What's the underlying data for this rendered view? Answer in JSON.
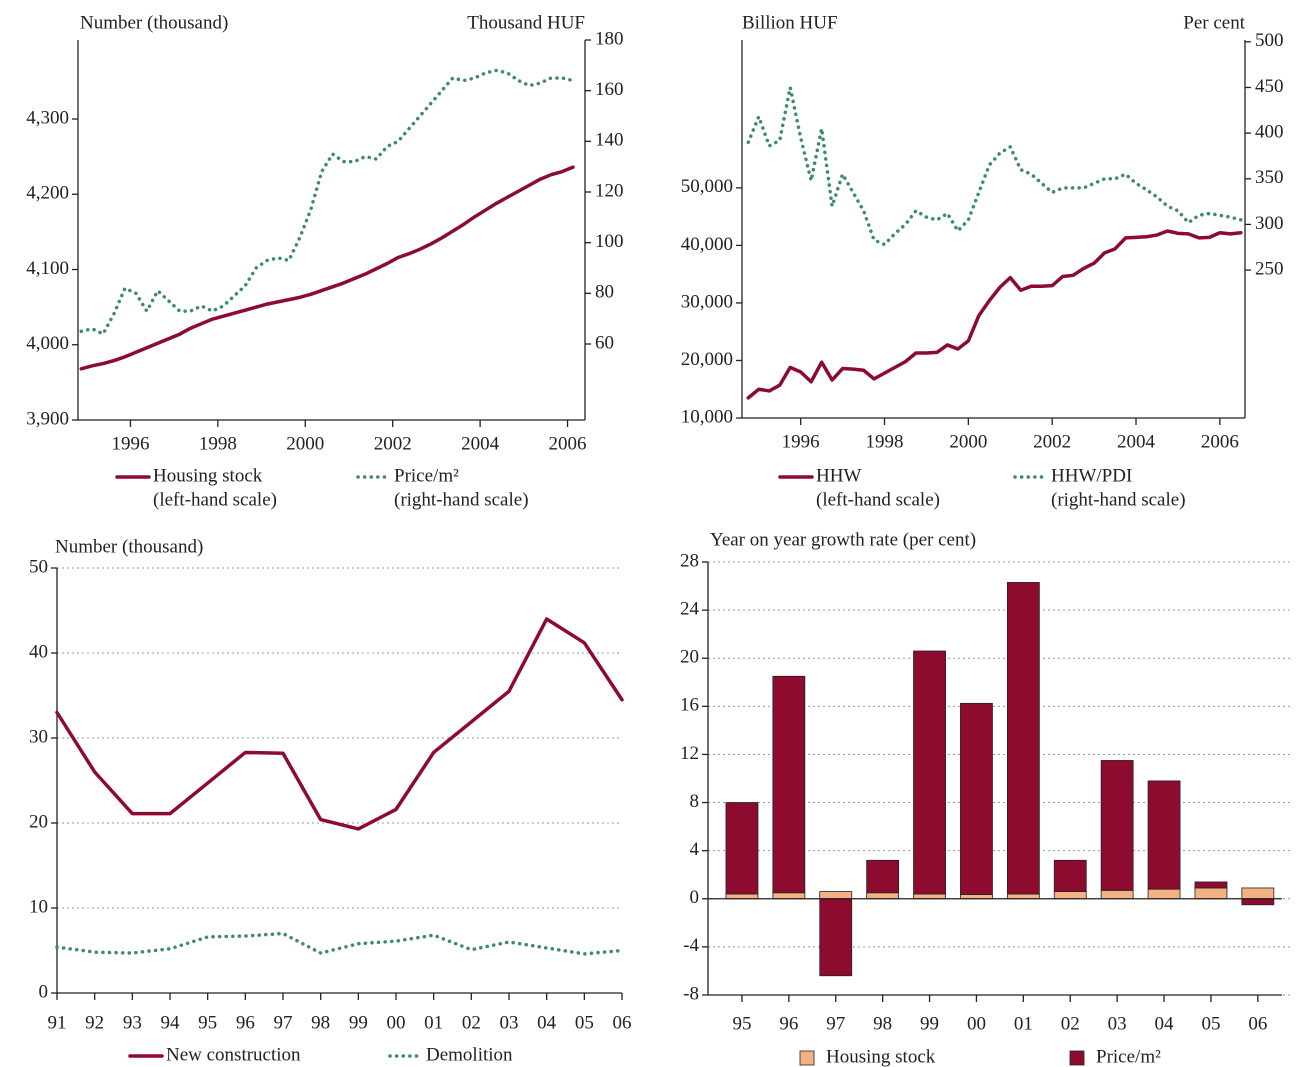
{
  "chart_data": [
    {
      "type": "line",
      "ylabel": "Number (thousand)",
      "y2label": "Thousand HUF",
      "x": [
        1994.875,
        1995.125,
        1995.375,
        1995.625,
        1995.875,
        1996.125,
        1996.375,
        1996.625,
        1996.875,
        1997.125,
        1997.375,
        1997.625,
        1997.875,
        1998.125,
        1998.375,
        1998.625,
        1998.875,
        1999.125,
        1999.375,
        1999.625,
        1999.875,
        2000.125,
        2000.375,
        2000.625,
        2000.875,
        2001.125,
        2001.375,
        2001.625,
        2001.875,
        2002.125,
        2002.375,
        2002.625,
        2002.875,
        2003.125,
        2003.375,
        2003.625,
        2003.875,
        2004.125,
        2004.375,
        2004.625,
        2004.875,
        2005.125,
        2005.375,
        2005.625,
        2005.875,
        2006.125
      ],
      "xlim": [
        1994.8,
        2006.4
      ],
      "xticks": [
        1996,
        1998,
        2000,
        2002,
        2004,
        2006
      ],
      "ylim": [
        3900,
        4405
      ],
      "yticks": [
        {
          "value": 3900,
          "label": "3,900"
        },
        {
          "value": 4000,
          "label": "4,000"
        },
        {
          "value": 4100,
          "label": "4,100"
        },
        {
          "value": 4200,
          "label": "4,200"
        },
        {
          "value": 4300,
          "label": "4,300"
        }
      ],
      "y2lim": [
        30,
        180
      ],
      "y2ticks": [
        60,
        80,
        100,
        120,
        140,
        160,
        180
      ],
      "series": [
        {
          "name": "Housing stock",
          "scale_label": "(left-hand scale)",
          "color": "#8c0b2f",
          "line_style": "solid",
          "values": [
            3968,
            3972,
            3975,
            3979,
            3984,
            3990,
            3996,
            4002,
            4008,
            4014,
            4022,
            4028,
            4034,
            4038,
            4042,
            4046,
            4050,
            4054,
            4057,
            4060,
            4063,
            4067,
            4072,
            4077,
            4082,
            4088,
            4094,
            4101,
            4108,
            4116,
            4121,
            4127,
            4134,
            4142,
            4151,
            4160,
            4170,
            4179,
            4188,
            4196,
            4204,
            4212,
            4220,
            4226,
            4230,
            4236
          ]
        },
        {
          "name": "Price/m²",
          "scale_label": "(right-hand scale)",
          "color": "#3e8a6b",
          "line_style": "dotted",
          "axis": "y2",
          "values": [
            65,
            66,
            64,
            72,
            82,
            80,
            73,
            81,
            77,
            73,
            73,
            75,
            73,
            75,
            79,
            83,
            90,
            93,
            94,
            93,
            102,
            113,
            128,
            135,
            132,
            132,
            134,
            133,
            138,
            140,
            145,
            150,
            155,
            160,
            165,
            164,
            165,
            167,
            168,
            167,
            164,
            162,
            163,
            165,
            165,
            164
          ]
        }
      ]
    },
    {
      "type": "line",
      "ylabel": "Billion HUF",
      "y2label": "Per cent",
      "x": [
        1994.75,
        1995,
        1995.25,
        1995.5,
        1995.75,
        1996,
        1996.25,
        1996.5,
        1996.75,
        1997,
        1997.25,
        1997.5,
        1997.75,
        1998,
        1998.25,
        1998.5,
        1998.75,
        1999,
        1999.25,
        1999.5,
        1999.75,
        2000,
        2000.25,
        2000.5,
        2000.75,
        2001,
        2001.25,
        2001.5,
        2001.75,
        2002,
        2002.25,
        2002.5,
        2002.75,
        2003,
        2003.25,
        2003.5,
        2003.75,
        2004,
        2004.25,
        2004.5,
        2004.75,
        2005,
        2005.25,
        2005.5,
        2005.75,
        2006,
        2006.25,
        2006.5
      ],
      "xlim": [
        1994.6,
        2006.6
      ],
      "xticks": [
        1996,
        1998,
        2000,
        2002,
        2004,
        2006
      ],
      "ylim": [
        10000,
        75700
      ],
      "yticks": [
        {
          "value": 10000,
          "label": "10,000"
        },
        {
          "value": 20000,
          "label": "20,000"
        },
        {
          "value": 30000,
          "label": "30,000"
        },
        {
          "value": 40000,
          "label": "40,000"
        },
        {
          "value": 50000,
          "label": "50,000"
        }
      ],
      "y2lim": [
        88,
        502
      ],
      "y2ticks": [
        250,
        300,
        350,
        400,
        450,
        500
      ],
      "series": [
        {
          "name": "HHW",
          "scale_label": "(left-hand scale)",
          "color": "#8c0b2f",
          "line_style": "solid",
          "values": [
            13500,
            15000,
            14700,
            15700,
            18800,
            18000,
            16300,
            19700,
            16600,
            18600,
            18500,
            18300,
            16800,
            17800,
            18800,
            19800,
            21300,
            21300,
            21400,
            22700,
            22000,
            23400,
            27800,
            30400,
            32700,
            34400,
            32200,
            32900,
            32900,
            33000,
            34600,
            34800,
            36000,
            36900,
            38700,
            39400,
            41300,
            41400,
            41500,
            41800,
            42500,
            42100,
            42000,
            41300,
            41400,
            42200,
            42000,
            42200
          ]
        },
        {
          "name": "HHW/PDI",
          "scale_label": "(right-hand scale)",
          "color": "#3e8a6b",
          "line_style": "dotted",
          "axis": "y2",
          "values": [
            390,
            418,
            386,
            392,
            450,
            395,
            348,
            405,
            320,
            355,
            335,
            315,
            283,
            278,
            290,
            300,
            315,
            308,
            305,
            312,
            293,
            305,
            335,
            365,
            378,
            385,
            360,
            355,
            345,
            335,
            340,
            340,
            340,
            345,
            350,
            350,
            355,
            345,
            338,
            330,
            320,
            315,
            302,
            310,
            312,
            310,
            308,
            305
          ]
        }
      ]
    },
    {
      "type": "line",
      "ylabel": "Number (thousand)",
      "grid": true,
      "categories": [
        "91",
        "92",
        "93",
        "94",
        "95",
        "96",
        "97",
        "98",
        "99",
        "00",
        "01",
        "02",
        "03",
        "04",
        "05",
        "06"
      ],
      "ylim": [
        0,
        50
      ],
      "yticks": [
        0,
        10,
        20,
        30,
        40,
        50
      ],
      "series": [
        {
          "name": "New construction",
          "color": "#8c0b2f",
          "line_style": "solid",
          "values": [
            33,
            26,
            21.1,
            21.1,
            24.7,
            28.3,
            28.2,
            20.4,
            19.3,
            21.6,
            28.3,
            31.9,
            35.5,
            44,
            41.2,
            34.5
          ]
        },
        {
          "name": "Demolition",
          "color": "#3e8a6b",
          "line_style": "dotted",
          "values": [
            5.4,
            4.8,
            4.7,
            5.2,
            6.6,
            6.7,
            7.0,
            4.7,
            5.8,
            6.1,
            6.8,
            5.1,
            6.0,
            5.3,
            4.6,
            5.0
          ]
        }
      ]
    },
    {
      "type": "bar",
      "stacked": true,
      "ylabel": "Year on year growth rate (per cent)",
      "grid": true,
      "categories": [
        "95",
        "96",
        "97",
        "98",
        "99",
        "00",
        "01",
        "02",
        "03",
        "04",
        "05",
        "06"
      ],
      "ylim": [
        -8,
        28
      ],
      "yticks": [
        -8,
        -4,
        0,
        4,
        8,
        12,
        16,
        20,
        24,
        28
      ],
      "series": [
        {
          "name": "Housing stock",
          "color": "#f4b183",
          "values": [
            0.4,
            0.5,
            0.6,
            0.5,
            0.4,
            0.35,
            0.4,
            0.6,
            0.7,
            0.8,
            0.9,
            0.9
          ]
        },
        {
          "name": "Price/m²",
          "color": "#8c0b2f",
          "values": [
            7.6,
            18.0,
            -6.4,
            2.7,
            20.2,
            15.9,
            25.9,
            2.6,
            10.8,
            9.0,
            0.5,
            -0.5
          ]
        }
      ]
    }
  ]
}
